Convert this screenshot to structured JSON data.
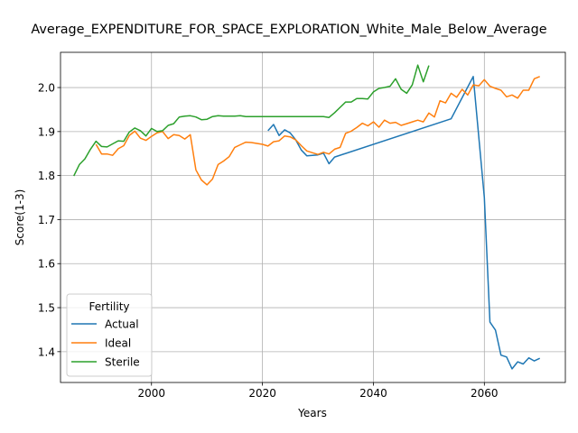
{
  "chart_data": {
    "type": "line",
    "title": "Average_EXPENDITURE_FOR_SPACE_EXPLORATION_White_Male_Below_Average",
    "xlabel": "Years",
    "ylabel": "Score(1-3)",
    "xlim": [
      1983.6,
      2074.6
    ],
    "ylim": [
      1.33,
      2.08
    ],
    "xticks": [
      2000,
      2020,
      2040,
      2060
    ],
    "yticks": [
      1.4,
      1.5,
      1.6,
      1.7,
      1.8,
      1.9,
      2.0
    ],
    "grid": true,
    "legend": {
      "title": "Fertility",
      "placement": "lower-left"
    },
    "series": [
      {
        "name": "Actual",
        "color": "#1f77b4",
        "x": [
          2021,
          2022,
          2023,
          2024,
          2025,
          2026,
          2027,
          2028,
          2029,
          2030,
          2031,
          2032,
          2033,
          2054,
          2058,
          2060,
          2061,
          2062,
          2063,
          2064,
          2065,
          2066,
          2067,
          2068,
          2069,
          2070
        ],
        "y": [
          1.902,
          1.916,
          1.891,
          1.904,
          1.897,
          1.881,
          1.858,
          1.845,
          1.846,
          1.847,
          1.851,
          1.827,
          1.842,
          1.929,
          2.025,
          1.75,
          1.467,
          1.449,
          1.392,
          1.388,
          1.361,
          1.377,
          1.372,
          1.386,
          1.379,
          1.385
        ]
      },
      {
        "name": "Ideal",
        "color": "#ff7f0e",
        "x": [
          1990,
          1991,
          1992,
          1993,
          1994,
          1995,
          1996,
          1997,
          1998,
          1999,
          2000,
          2001,
          2002,
          2003,
          2004,
          2005,
          2006,
          2007,
          2008,
          2009,
          2010,
          2011,
          2012,
          2013,
          2014,
          2015,
          2016,
          2017,
          2018,
          2019,
          2020,
          2021,
          2022,
          2023,
          2024,
          2025,
          2026,
          2027,
          2028,
          2029,
          2030,
          2031,
          2032,
          2033,
          2034,
          2035,
          2036,
          2037,
          2038,
          2039,
          2040,
          2041,
          2042,
          2043,
          2044,
          2045,
          2046,
          2047,
          2048,
          2049,
          2050,
          2051,
          2052,
          2053,
          2054,
          2055,
          2056,
          2057,
          2058,
          2059,
          2060,
          2061,
          2062,
          2063,
          2064,
          2065,
          2066,
          2067,
          2068,
          2069,
          2070
        ],
        "y": [
          1.871,
          1.849,
          1.849,
          1.846,
          1.861,
          1.868,
          1.891,
          1.901,
          1.885,
          1.88,
          1.889,
          1.897,
          1.9,
          1.884,
          1.893,
          1.891,
          1.883,
          1.893,
          1.813,
          1.79,
          1.779,
          1.792,
          1.825,
          1.833,
          1.843,
          1.864,
          1.87,
          1.876,
          1.875,
          1.873,
          1.871,
          1.867,
          1.877,
          1.879,
          1.89,
          1.888,
          1.881,
          1.868,
          1.856,
          1.852,
          1.848,
          1.853,
          1.849,
          1.86,
          1.864,
          1.896,
          1.901,
          1.909,
          1.919,
          1.913,
          1.922,
          1.91,
          1.926,
          1.919,
          1.921,
          1.914,
          1.918,
          1.922,
          1.926,
          1.922,
          1.942,
          1.933,
          1.97,
          1.965,
          1.987,
          1.978,
          1.996,
          1.983,
          2.006,
          2.004,
          2.018,
          2.003,
          1.998,
          1.994,
          1.979,
          1.983,
          1.976,
          1.994,
          1.994,
          2.02,
          2.025
        ]
      },
      {
        "name": "Sterile",
        "color": "#2ca02c",
        "x": [
          1986,
          1987,
          1988,
          1989,
          1990,
          1991,
          1992,
          1993,
          1994,
          1995,
          1996,
          1997,
          1998,
          1999,
          2000,
          2001,
          2002,
          2003,
          2004,
          2005,
          2006,
          2007,
          2008,
          2009,
          2010,
          2011,
          2012,
          2013,
          2014,
          2015,
          2016,
          2017,
          2018,
          2019,
          2020,
          2021,
          2022,
          2023,
          2024,
          2025,
          2026,
          2027,
          2028,
          2029,
          2030,
          2031,
          2032,
          2033,
          2034,
          2035,
          2036,
          2037,
          2038,
          2039,
          2040,
          2041,
          2042,
          2043,
          2044,
          2045,
          2046,
          2047,
          2048,
          2049,
          2050
        ],
        "y": [
          1.799,
          1.825,
          1.838,
          1.86,
          1.878,
          1.866,
          1.865,
          1.872,
          1.879,
          1.878,
          1.899,
          1.908,
          1.902,
          1.89,
          1.907,
          1.9,
          1.902,
          1.914,
          1.918,
          1.933,
          1.935,
          1.936,
          1.933,
          1.927,
          1.928,
          1.934,
          1.936,
          1.935,
          1.935,
          1.935,
          1.936,
          1.934,
          1.934,
          1.934,
          1.934,
          1.934,
          1.934,
          1.934,
          1.934,
          1.934,
          1.934,
          1.934,
          1.934,
          1.934,
          1.934,
          1.934,
          1.932,
          1.943,
          1.955,
          1.967,
          1.967,
          1.975,
          1.975,
          1.974,
          1.99,
          1.998,
          2.0,
          2.003,
          2.02,
          1.996,
          1.987,
          2.006,
          2.051,
          2.013,
          2.05
        ]
      }
    ]
  }
}
